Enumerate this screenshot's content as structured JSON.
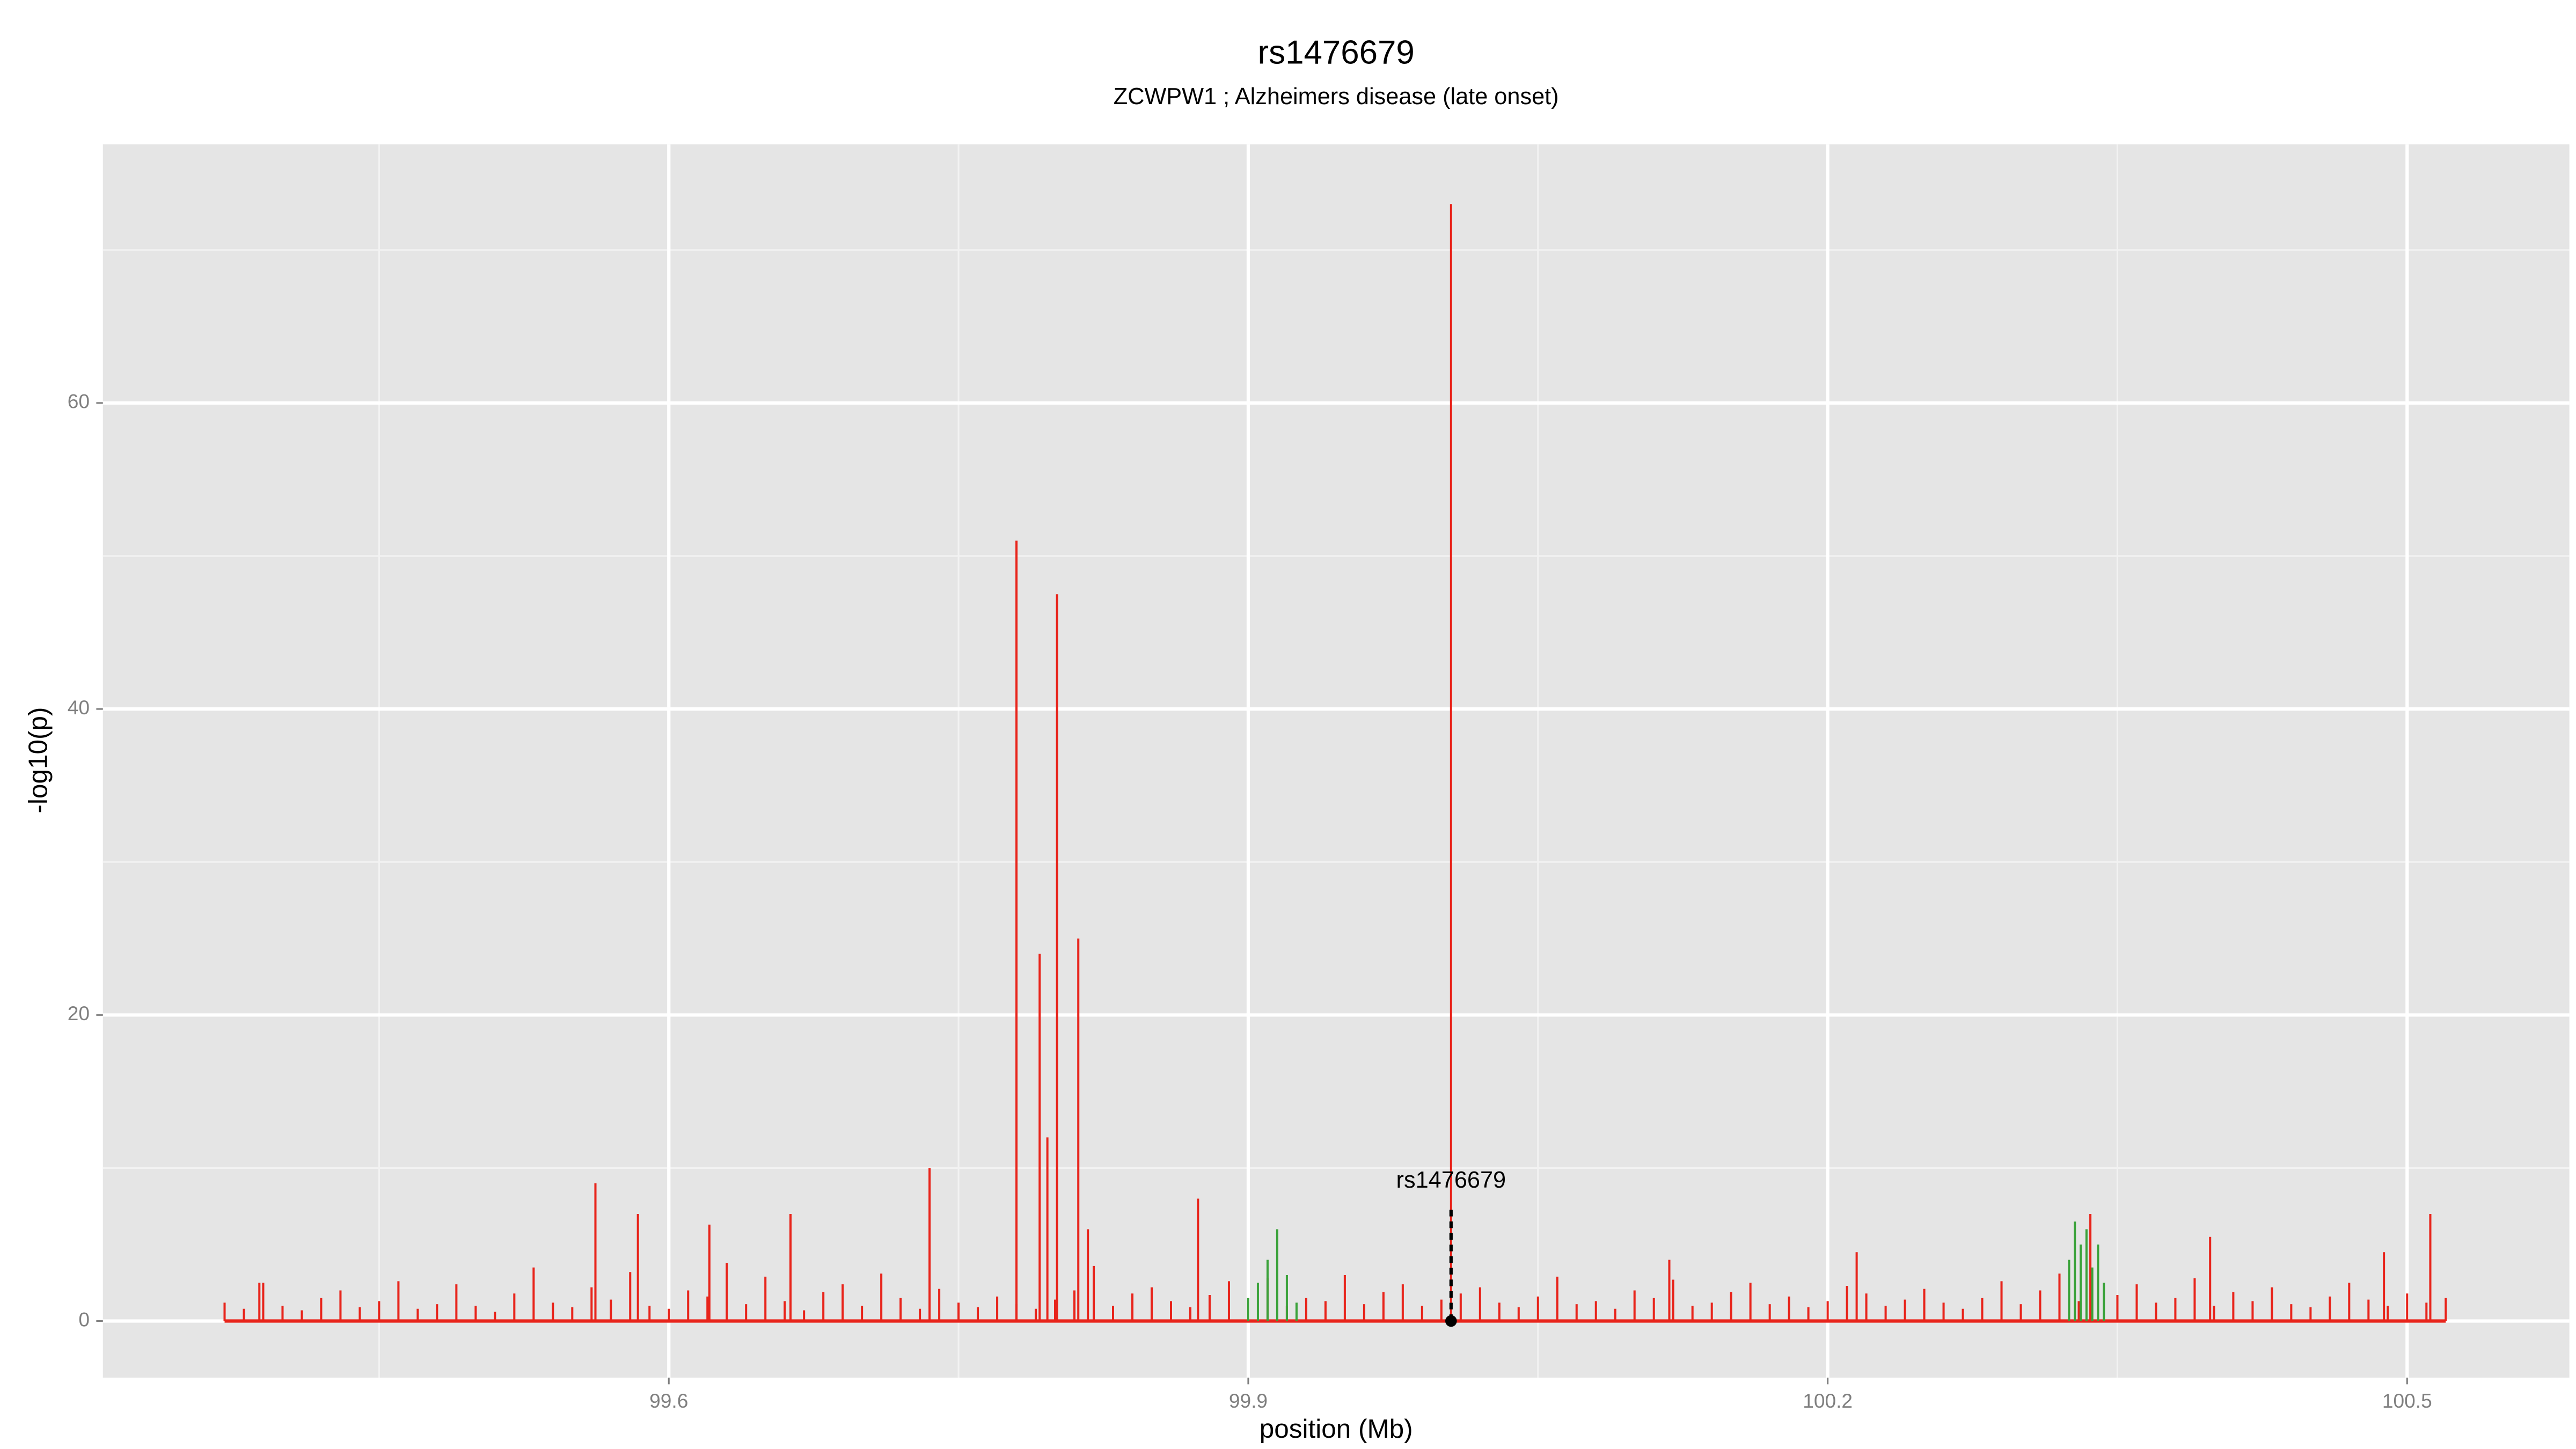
{
  "chart_data": {
    "type": "stem",
    "title": "rs1476679",
    "subtitle": "ZCWPW1 ; Alzheimers disease (late onset)",
    "xlabel": "position (Mb)",
    "ylabel": "-log10(p)",
    "xlim": [
      99.307,
      100.584
    ],
    "ylim": [
      -3.7,
      76.9
    ],
    "xticks": [
      99.6,
      99.9,
      100.2,
      100.5
    ],
    "yticks": [
      0,
      20,
      40,
      60
    ],
    "x_minor_grid": [
      99.45,
      99.75,
      100.05,
      100.35
    ],
    "y_minor_grid": [
      10,
      30,
      50,
      70
    ],
    "grid": true,
    "background": "#e5e5e5",
    "annotation": {
      "text": "rs1476679",
      "x": 100.005
    },
    "series": [
      {
        "color": "#e8241b",
        "x": [
          99.37,
          99.38,
          99.39,
          99.4,
          99.41,
          99.42,
          99.43,
          99.44,
          99.45,
          99.46,
          99.47,
          99.48,
          99.49,
          99.5,
          99.51,
          99.52,
          99.53,
          99.54,
          99.55,
          99.56,
          99.57,
          99.58,
          99.59,
          99.6,
          99.61,
          99.62,
          99.63,
          99.64,
          99.65,
          99.66,
          99.67,
          99.68,
          99.69,
          99.7,
          99.71,
          99.72,
          99.73,
          99.74,
          99.75,
          99.76,
          99.77,
          99.78,
          99.79,
          99.8,
          99.81,
          99.82,
          99.83,
          99.84,
          99.85,
          99.86,
          99.87,
          99.88,
          99.89,
          99.9,
          99.91,
          99.92,
          99.93,
          99.94,
          99.95,
          99.96,
          99.97,
          99.98,
          99.99,
          100.0,
          100.01,
          100.02,
          100.03,
          100.04,
          100.05,
          100.06,
          100.07,
          100.08,
          100.09,
          100.1,
          100.11,
          100.12,
          100.13,
          100.14,
          100.15,
          100.16,
          100.17,
          100.18,
          100.19,
          100.2,
          100.21,
          100.22,
          100.23,
          100.24,
          100.25,
          100.26,
          100.27,
          100.28,
          100.29,
          100.3,
          100.31,
          100.32,
          100.33,
          100.34,
          100.35,
          100.36,
          100.37,
          100.38,
          100.39,
          100.4,
          100.41,
          100.42,
          100.43,
          100.44,
          100.45,
          100.46,
          100.47,
          100.48,
          100.49,
          100.5,
          100.51,
          100.52,
          99.388,
          99.562,
          99.584,
          99.621,
          99.663,
          99.735,
          99.78,
          99.792,
          99.796,
          99.801,
          99.812,
          99.817,
          99.874,
          100.005,
          100.118,
          100.215,
          100.336,
          100.398,
          100.488,
          100.512
        ],
        "values": [
          1.2,
          0.8,
          2.5,
          1.0,
          0.7,
          1.5,
          2.0,
          0.9,
          1.3,
          2.6,
          0.8,
          1.1,
          2.4,
          1.0,
          0.6,
          1.8,
          3.5,
          1.2,
          0.9,
          2.2,
          1.4,
          3.2,
          1.0,
          0.8,
          2.0,
          1.6,
          3.8,
          1.1,
          2.9,
          1.3,
          0.7,
          1.9,
          2.4,
          1.0,
          3.1,
          1.5,
          0.8,
          2.1,
          1.2,
          0.9,
          1.6,
          1.1,
          0.8,
          1.4,
          2.0,
          3.6,
          1.0,
          1.8,
          2.2,
          1.3,
          0.9,
          1.7,
          2.6,
          1.2,
          2.8,
          1.0,
          1.5,
          1.3,
          3.0,
          1.1,
          1.9,
          2.4,
          1.0,
          1.4,
          1.8,
          2.2,
          1.2,
          0.9,
          1.6,
          2.9,
          1.1,
          1.3,
          0.8,
          2.0,
          1.5,
          2.7,
          1.0,
          1.2,
          1.9,
          2.5,
          1.1,
          1.6,
          0.9,
          1.3,
          2.3,
          1.8,
          1.0,
          1.4,
          2.1,
          1.2,
          0.8,
          1.5,
          2.6,
          1.1,
          2.0,
          3.1,
          1.3,
          1.0,
          1.7,
          2.4,
          1.2,
          1.5,
          2.8,
          1.0,
          1.9,
          1.3,
          2.2,
          1.1,
          0.9,
          1.6,
          2.5,
          1.4,
          1.0,
          1.8,
          1.2,
          1.5,
          2.5,
          9,
          7,
          6.3,
          7,
          10,
          51,
          24,
          12,
          47.5,
          25,
          6,
          8,
          73,
          4,
          4.5,
          7,
          5.5,
          4.5,
          7
        ]
      },
      {
        "color": "#3aa23a",
        "x": [
          99.9,
          99.905,
          99.91,
          99.915,
          99.92,
          99.925,
          100.325,
          100.328,
          100.331,
          100.334,
          100.337,
          100.34,
          100.343
        ],
        "values": [
          1.5,
          2.5,
          4,
          6,
          3,
          1.2,
          4,
          6.5,
          5,
          6,
          3.5,
          5,
          2.5
        ]
      }
    ]
  }
}
